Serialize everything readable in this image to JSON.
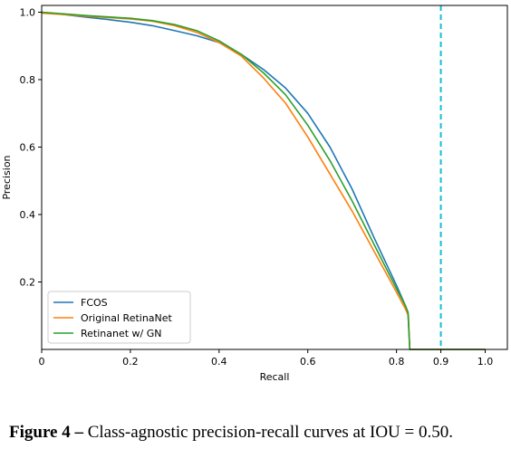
{
  "chart_data": {
    "type": "line",
    "title": "",
    "xlabel": "Recall",
    "ylabel": "Precision",
    "xlim": [
      0,
      1.05
    ],
    "ylim": [
      0,
      1.02
    ],
    "xticks": [
      {
        "value": 0,
        "label": "0"
      },
      {
        "value": 0.2,
        "label": "0.2"
      },
      {
        "value": 0.4,
        "label": "0.4"
      },
      {
        "value": 0.6,
        "label": "0.6"
      },
      {
        "value": 0.8,
        "label": "0.8"
      },
      {
        "value": 0.9,
        "label": "0.9"
      },
      {
        "value": 1.0,
        "label": "1.0"
      }
    ],
    "yticks": [
      {
        "value": 0.2,
        "label": "0.2"
      },
      {
        "value": 0.4,
        "label": "0.4"
      },
      {
        "value": 0.6,
        "label": "0.6"
      },
      {
        "value": 0.8,
        "label": "0.8"
      },
      {
        "value": 1.0,
        "label": "1.0"
      }
    ],
    "grid": false,
    "legend_position": "lower-left",
    "reference_line": {
      "x": 0.9,
      "color": "#17becf",
      "style": "dashed"
    },
    "series": [
      {
        "name": "FCOS",
        "color": "#1f77b4",
        "x": [
          0,
          0.05,
          0.1,
          0.15,
          0.2,
          0.25,
          0.3,
          0.35,
          0.4,
          0.45,
          0.5,
          0.55,
          0.6,
          0.65,
          0.7,
          0.75,
          0.8,
          0.82,
          0.826,
          0.83,
          1.0
        ],
        "y": [
          1.0,
          0.993,
          0.985,
          0.978,
          0.97,
          0.96,
          0.945,
          0.93,
          0.91,
          0.875,
          0.83,
          0.775,
          0.7,
          0.6,
          0.475,
          0.33,
          0.19,
          0.13,
          0.11,
          0.0,
          0.0
        ]
      },
      {
        "name": "Original RetinaNet",
        "color": "#ff7f0e",
        "x": [
          0,
          0.05,
          0.1,
          0.15,
          0.2,
          0.25,
          0.3,
          0.35,
          0.4,
          0.45,
          0.5,
          0.55,
          0.6,
          0.65,
          0.7,
          0.75,
          0.8,
          0.82,
          0.827,
          0.83,
          1.0
        ],
        "y": [
          0.997,
          0.993,
          0.988,
          0.984,
          0.98,
          0.973,
          0.96,
          0.94,
          0.91,
          0.87,
          0.805,
          0.73,
          0.63,
          0.52,
          0.41,
          0.29,
          0.17,
          0.12,
          0.1,
          0.0,
          0.0
        ]
      },
      {
        "name": "Retinanet w/ GN",
        "color": "#2ca02c",
        "x": [
          0,
          0.05,
          0.1,
          0.15,
          0.2,
          0.25,
          0.3,
          0.35,
          0.4,
          0.45,
          0.5,
          0.55,
          0.6,
          0.65,
          0.7,
          0.75,
          0.8,
          0.82,
          0.826,
          0.83,
          1.0
        ],
        "y": [
          1.0,
          0.995,
          0.99,
          0.986,
          0.982,
          0.975,
          0.963,
          0.945,
          0.915,
          0.875,
          0.82,
          0.755,
          0.665,
          0.56,
          0.44,
          0.31,
          0.18,
          0.13,
          0.11,
          0.0,
          0.0
        ]
      }
    ]
  },
  "caption": {
    "figure_label": "Figure 4 –",
    "text": "Class-agnostic precision-recall curves at IOU = 0.50."
  }
}
